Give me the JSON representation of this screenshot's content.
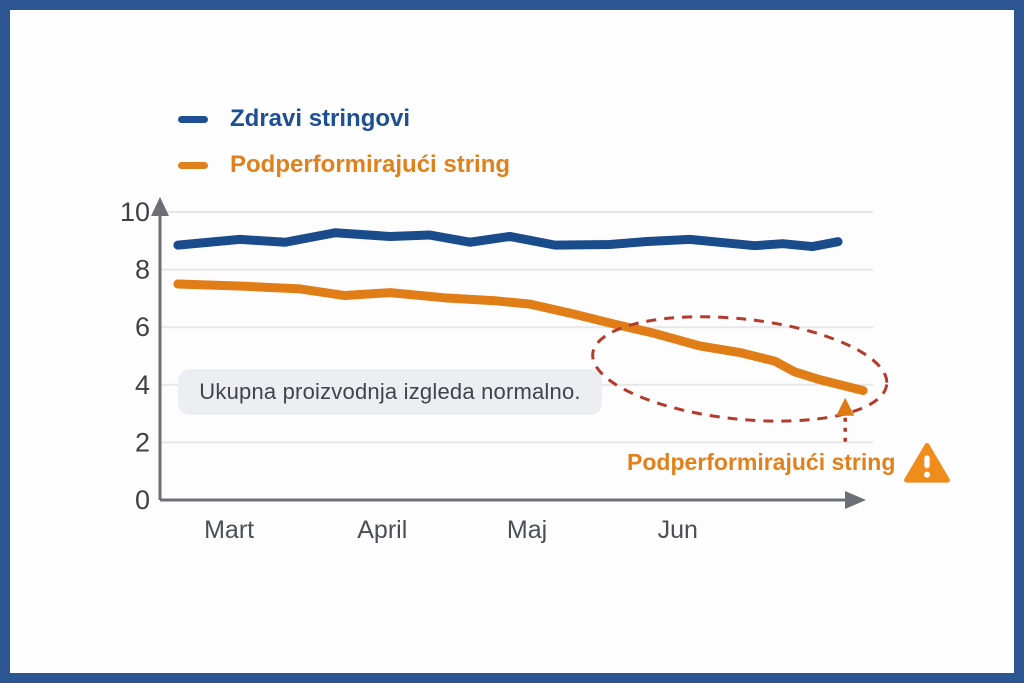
{
  "colors": {
    "frame_border": "#2b5691",
    "background": "#fdfdfd",
    "axis": "#6e6e76",
    "grid": "#e7e7ea",
    "tick_label": "#3f4147",
    "month_label": "#4b4e54",
    "note_box_bg": "#eceef2",
    "note_box_text": "#3f434b",
    "highlight_red": "#b43a2c",
    "arrow_orange": "#dd7a14",
    "warning_fill": "#ef8c1c",
    "callout_color": "#e0811c"
  },
  "legend": {
    "items": [
      {
        "label": "Zdravi stringovi",
        "color": "#1d4f92"
      },
      {
        "label": "Podperformirajući string",
        "color": "#e0811c"
      }
    ]
  },
  "chart_data": {
    "type": "line",
    "title": "",
    "xlabel": "",
    "ylabel": "",
    "xlim": [
      0,
      12
    ],
    "ylim": [
      0,
      10
    ],
    "y_ticks": [
      0,
      2,
      4,
      6,
      8,
      10
    ],
    "x_tick_labels": [
      "Mart",
      "April",
      "Maj",
      "Jun"
    ],
    "x_tick_positions": [
      1.16,
      3.73,
      6.16,
      8.69
    ],
    "grid": true,
    "legend_position": "top-left",
    "series": [
      {
        "name": "Zdravi stringovi",
        "color": "#1a4c8c",
        "x": [
          0.3,
          1.34,
          2.1,
          2.94,
          3.86,
          4.53,
          5.2,
          5.87,
          6.63,
          7.55,
          8.14,
          8.89,
          9.98,
          10.45,
          10.95,
          11.38
        ],
        "values": [
          8.85,
          9.05,
          8.95,
          9.28,
          9.15,
          9.2,
          8.95,
          9.15,
          8.85,
          8.87,
          8.97,
          9.05,
          8.83,
          8.9,
          8.8,
          8.97
        ]
      },
      {
        "name": "Podperformirajući string",
        "color": "#e07d16",
        "x": [
          0.3,
          1.43,
          2.35,
          3.1,
          3.86,
          4.78,
          5.62,
          6.21,
          6.96,
          7.64,
          8.31,
          9.06,
          9.73,
          10.32,
          10.65,
          11.07,
          11.8
        ],
        "values": [
          7.5,
          7.42,
          7.33,
          7.1,
          7.2,
          7.02,
          6.92,
          6.8,
          6.45,
          6.1,
          5.78,
          5.35,
          5.12,
          4.82,
          4.45,
          4.18,
          3.8
        ]
      }
    ],
    "annotations": {
      "note_box": "Ukupna proizvodnja izgleda normalno.",
      "callout_label": "Podperformirajući string",
      "callout_icon": "warning-triangle",
      "highlight_ellipse": {
        "x": 9.73,
        "y": 4.55,
        "rx": 2.48,
        "ry": 1.74,
        "rotation_deg": 6
      },
      "arrow": {
        "x": 11.5,
        "y": 3.55
      }
    }
  }
}
